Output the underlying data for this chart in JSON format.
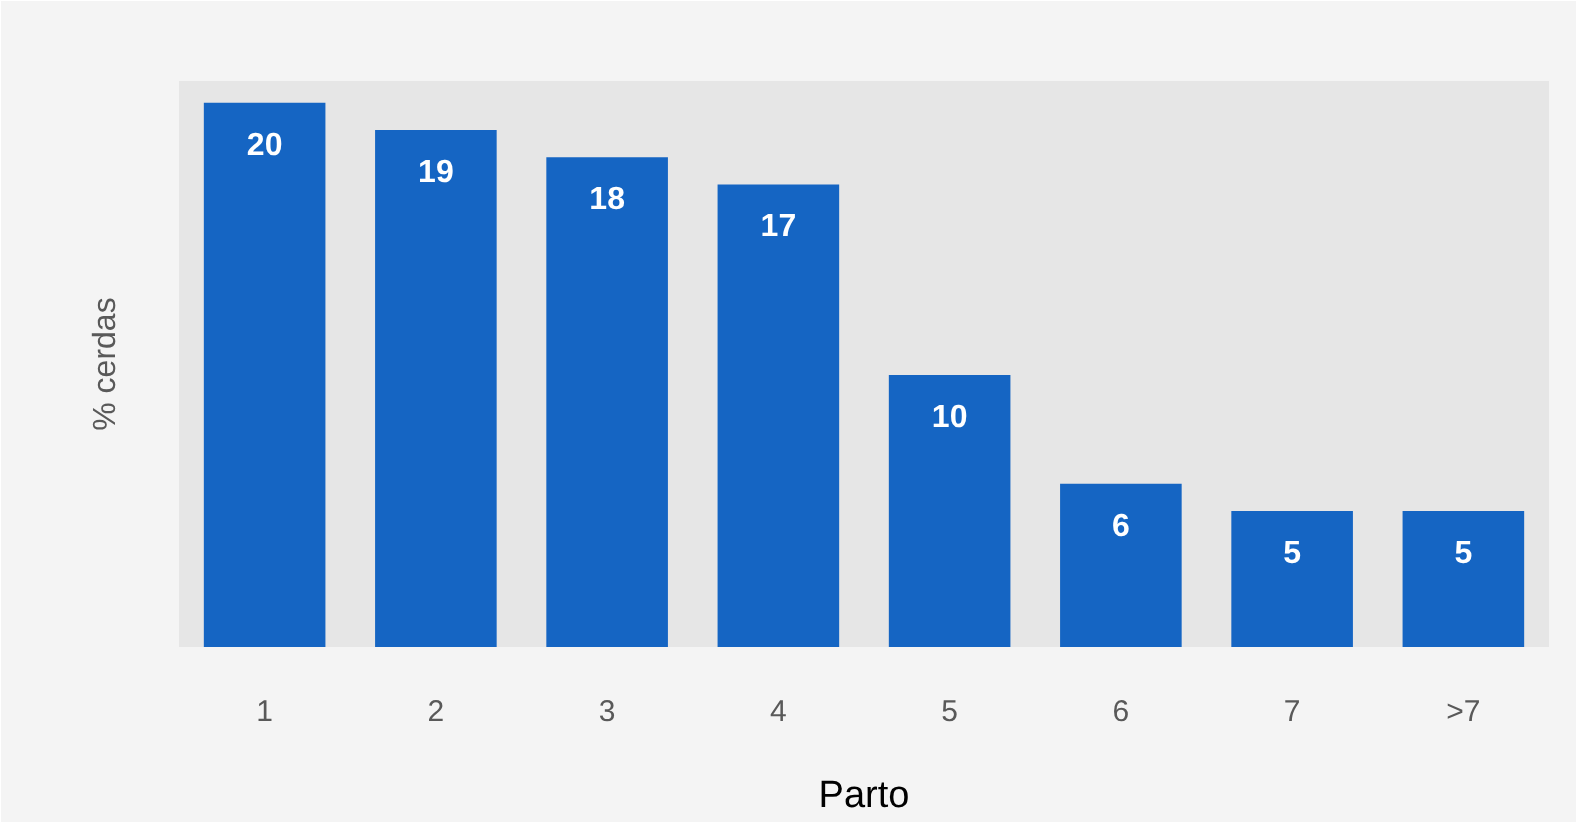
{
  "chart_data": {
    "type": "bar",
    "xlabel": "Parto",
    "ylabel": "% cerdas",
    "categories": [
      "1",
      "2",
      "3",
      "4",
      "5",
      "6",
      "7",
      ">7"
    ],
    "values": [
      20,
      19,
      18,
      17,
      10,
      6,
      5,
      5
    ],
    "color": "#1565c3",
    "data_labels": true
  }
}
